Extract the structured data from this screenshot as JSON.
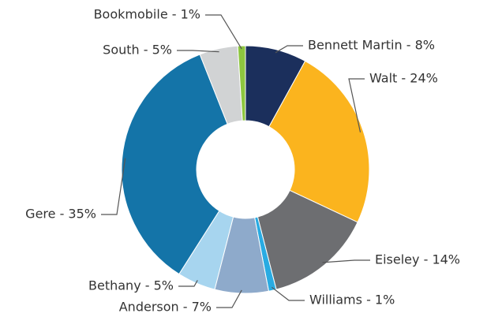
{
  "chart_data": {
    "type": "donut",
    "labels": [
      "Bennett Martin - 8%",
      "Walt - 24%",
      "Eiseley - 14%",
      "Williams - 1%",
      "Anderson - 7%",
      "Bethany - 5%",
      "Gere - 35%",
      "South - 5%",
      "Bookmobile - 1%"
    ],
    "values": [
      8,
      24,
      14,
      1,
      7,
      5,
      35,
      5,
      1
    ],
    "colors": [
      "#1b2f5c",
      "#fbb41e",
      "#6d6e71",
      "#29abe2",
      "#8eaacb",
      "#a7d5ef",
      "#1474a8",
      "#d1d3d4",
      "#8dc63f"
    ]
  }
}
